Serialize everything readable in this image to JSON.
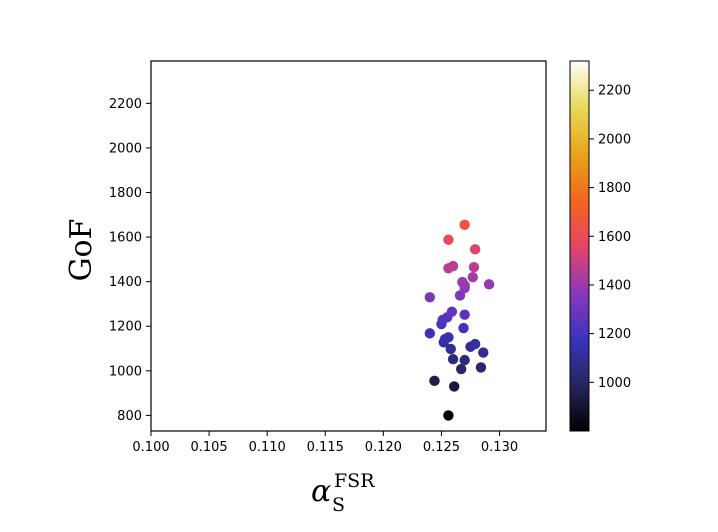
{
  "chart_data": {
    "type": "scatter",
    "title": "",
    "xlabel": "α_S^FSR",
    "xlabel_parts": {
      "base": "α",
      "sub": "S",
      "sup": "FSR"
    },
    "ylabel": "GoF",
    "xlim": [
      0.1,
      0.134
    ],
    "ylim": [
      730,
      2390
    ],
    "xticks": [
      "0.100",
      "0.105",
      "0.110",
      "0.115",
      "0.120",
      "0.125",
      "0.130"
    ],
    "yticks": [
      "800",
      "1000",
      "1200",
      "1400",
      "1600",
      "1800",
      "2000",
      "2200"
    ],
    "colorbar": {
      "colormap": "CMRmap",
      "range": [
        800,
        2320
      ],
      "ticks": [
        "1000",
        "1200",
        "1400",
        "1600",
        "1800",
        "2000",
        "2200"
      ]
    },
    "grid": false,
    "legend": "none",
    "points": [
      {
        "x": 0.1256,
        "y": 800
      },
      {
        "x": 0.1261,
        "y": 930
      },
      {
        "x": 0.1244,
        "y": 955
      },
      {
        "x": 0.1267,
        "y": 1008
      },
      {
        "x": 0.1284,
        "y": 1015
      },
      {
        "x": 0.126,
        "y": 1052
      },
      {
        "x": 0.127,
        "y": 1048
      },
      {
        "x": 0.1286,
        "y": 1082
      },
      {
        "x": 0.1258,
        "y": 1098
      },
      {
        "x": 0.1275,
        "y": 1108
      },
      {
        "x": 0.1279,
        "y": 1120
      },
      {
        "x": 0.1252,
        "y": 1128
      },
      {
        "x": 0.1253,
        "y": 1142
      },
      {
        "x": 0.1256,
        "y": 1150
      },
      {
        "x": 0.124,
        "y": 1168
      },
      {
        "x": 0.1269,
        "y": 1192
      },
      {
        "x": 0.125,
        "y": 1210
      },
      {
        "x": 0.1251,
        "y": 1228
      },
      {
        "x": 0.1255,
        "y": 1240
      },
      {
        "x": 0.127,
        "y": 1252
      },
      {
        "x": 0.1259,
        "y": 1265
      },
      {
        "x": 0.124,
        "y": 1330
      },
      {
        "x": 0.1266,
        "y": 1338
      },
      {
        "x": 0.127,
        "y": 1372
      },
      {
        "x": 0.127,
        "y": 1383
      },
      {
        "x": 0.1268,
        "y": 1398
      },
      {
        "x": 0.1291,
        "y": 1388
      },
      {
        "x": 0.1277,
        "y": 1420
      },
      {
        "x": 0.1256,
        "y": 1460
      },
      {
        "x": 0.126,
        "y": 1470
      },
      {
        "x": 0.1278,
        "y": 1465
      },
      {
        "x": 0.1279,
        "y": 1545
      },
      {
        "x": 0.1256,
        "y": 1588
      },
      {
        "x": 0.127,
        "y": 1655
      }
    ]
  }
}
